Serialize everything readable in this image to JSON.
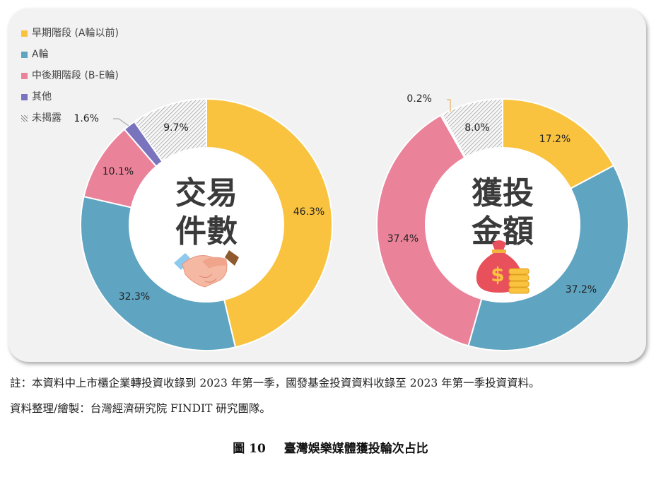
{
  "legend": [
    {
      "label": "早期階段 (A輪以前)",
      "color": "#F9C33F"
    },
    {
      "label": "A輪",
      "color": "#5FA4C0"
    },
    {
      "label": "中後期階段 (B-E輪)",
      "color": "#EA8299"
    },
    {
      "label": "其他",
      "color": "#7A73BD"
    },
    {
      "label": "未揭露",
      "color": "hatched-gray"
    }
  ],
  "chart_data": [
    {
      "type": "pie",
      "donut": true,
      "title_lines": [
        "交易",
        "件數"
      ],
      "center_icon": "handshake-icon",
      "categories": [
        "早期階段 (A輪以前)",
        "A輪",
        "中後期階段 (B-E輪)",
        "其他",
        "未揭露"
      ],
      "values": [
        46.3,
        32.3,
        10.1,
        1.6,
        9.7
      ],
      "labels": [
        "46.3%",
        "32.3%",
        "10.1%",
        "1.6%",
        "9.7%"
      ]
    },
    {
      "type": "pie",
      "donut": true,
      "title_lines": [
        "獲投",
        "金額"
      ],
      "center_icon": "money-bag-icon",
      "categories": [
        "早期階段 (A輪以前)",
        "A輪",
        "中後期階段 (B-E輪)",
        "其他",
        "未揭露"
      ],
      "values": [
        17.2,
        37.2,
        37.4,
        0.2,
        8.0
      ],
      "labels": [
        "17.2%",
        "37.2%",
        "37.4%",
        "0.2%",
        "8.0%"
      ]
    }
  ],
  "notes": {
    "line1": "註：本資料中上市櫃企業轉投資收錄到 2023 年第一季，國發基金投資資料收錄至 2023 年第一季投資資料。",
    "line2": "資料整理/繪製：台灣經濟研究院 FINDIT 研究團隊。"
  },
  "caption": {
    "number": "圖 10",
    "text": "臺灣娛樂媒體獲投輪次占比"
  }
}
